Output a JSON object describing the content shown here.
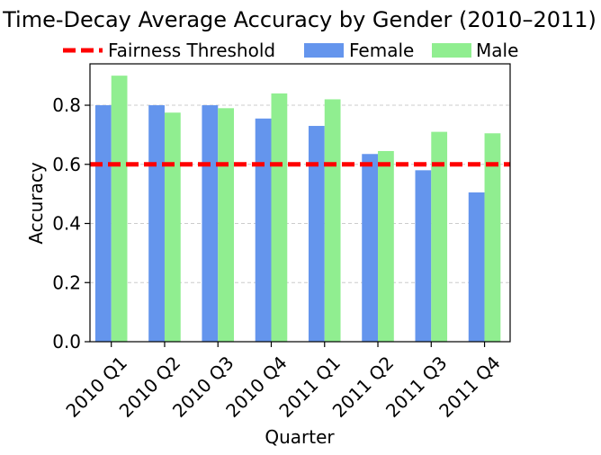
{
  "chart_data": {
    "type": "bar",
    "title": "Time-Decay Average Accuracy by Gender (2010–2011)",
    "xlabel": "Quarter",
    "ylabel": "Accuracy",
    "categories": [
      "2010 Q1",
      "2010 Q2",
      "2010 Q3",
      "2010 Q4",
      "2011 Q1",
      "2011 Q2",
      "2011 Q3",
      "2011 Q4"
    ],
    "series": [
      {
        "name": "Female",
        "color": "#6495ED",
        "values": [
          0.8,
          0.8,
          0.8,
          0.755,
          0.73,
          0.635,
          0.58,
          0.505
        ]
      },
      {
        "name": "Male",
        "color": "#90EE90",
        "values": [
          0.9,
          0.775,
          0.79,
          0.84,
          0.82,
          0.645,
          0.71,
          0.705
        ]
      }
    ],
    "reference_line": {
      "name": "Fairness Threshold",
      "value": 0.6,
      "color": "#FF0000",
      "style": "dashed"
    },
    "ylim": [
      0,
      0.94
    ],
    "yticks": [
      "0.0",
      "0.2",
      "0.4",
      "0.6",
      "0.8"
    ],
    "ytick_values": [
      0.0,
      0.2,
      0.4,
      0.6,
      0.8
    ],
    "grid": "y-dashed",
    "legend_position": "top-center"
  }
}
